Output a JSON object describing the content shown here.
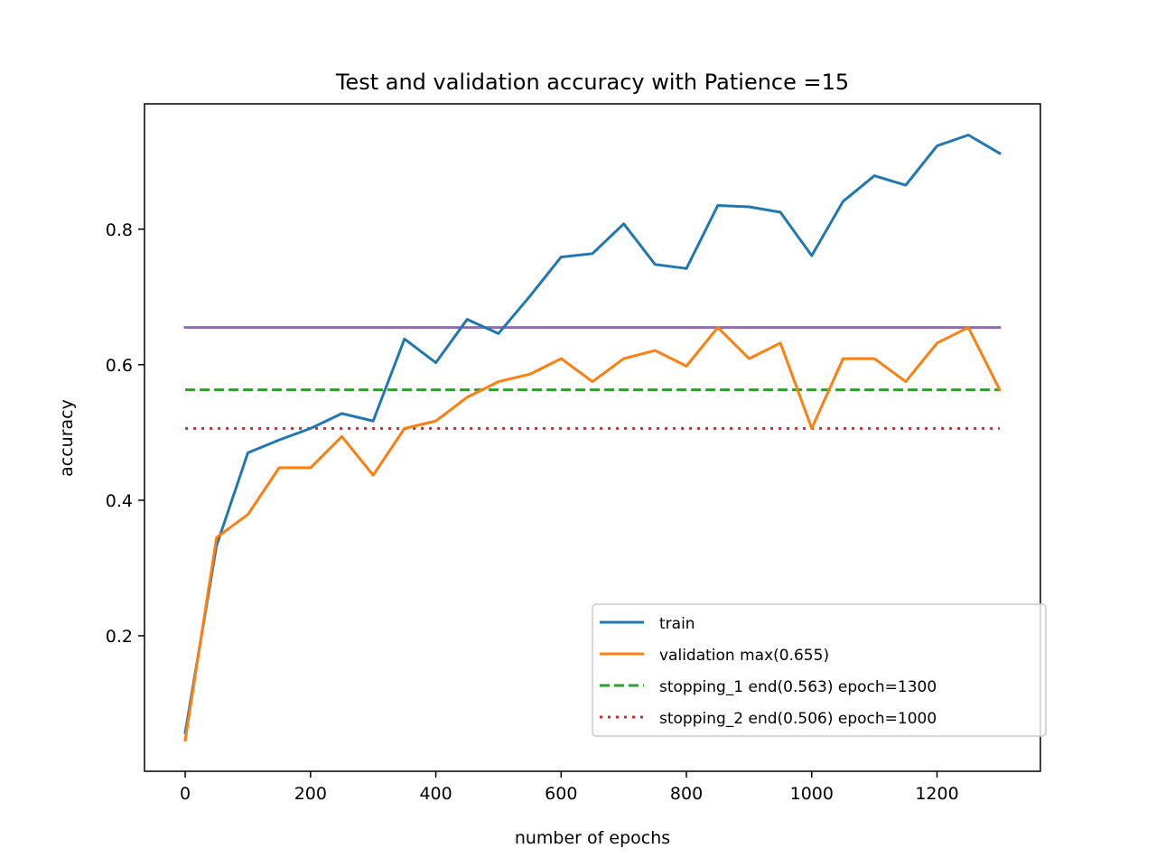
{
  "chart_data": {
    "type": "line",
    "title": "Test and validation accuracy with Patience =15",
    "xlabel": "number of epochs",
    "ylabel": "accuracy",
    "xlim": [
      -65,
      1365
    ],
    "ylim": [
      0.0,
      0.985
    ],
    "xticks": [
      0,
      200,
      400,
      600,
      800,
      1000,
      1200
    ],
    "yticks": [
      0.2,
      0.4,
      0.6,
      0.8
    ],
    "xtick_labels": [
      "0",
      "200",
      "400",
      "600",
      "800",
      "1000",
      "1200"
    ],
    "ytick_labels": [
      "0.2",
      "0.4",
      "0.6",
      "0.8"
    ],
    "grid": false,
    "legend_position": "lower-right",
    "x": [
      0,
      50,
      100,
      150,
      200,
      250,
      300,
      350,
      400,
      450,
      500,
      550,
      600,
      650,
      700,
      750,
      800,
      850,
      900,
      950,
      1000,
      1050,
      1100,
      1150,
      1200,
      1250,
      1300
    ],
    "series": [
      {
        "name": "train",
        "color": "#1f77b4",
        "style": "solid",
        "values": [
          0.057,
          0.333,
          0.47,
          0.489,
          0.506,
          0.528,
          0.517,
          0.638,
          0.603,
          0.667,
          0.646,
          0.701,
          0.759,
          0.764,
          0.808,
          0.748,
          0.742,
          0.835,
          0.833,
          0.825,
          0.761,
          0.841,
          0.879,
          0.865,
          0.923,
          0.939,
          0.912
        ]
      },
      {
        "name": "validation max(0.655)",
        "color": "#ff7f0e",
        "style": "solid",
        "values": [
          0.046,
          0.345,
          0.379,
          0.448,
          0.448,
          0.494,
          0.437,
          0.506,
          0.517,
          0.552,
          0.575,
          0.586,
          0.609,
          0.575,
          0.609,
          0.621,
          0.598,
          0.655,
          0.609,
          0.632,
          0.506,
          0.609,
          0.609,
          0.575,
          0.632,
          0.655,
          0.563
        ]
      },
      {
        "name": "stopping_1 end(0.563) epoch=1300",
        "color": "#2ca02c",
        "style": "dashed",
        "x": [
          0,
          1300
        ],
        "values": [
          0.563,
          0.563
        ]
      },
      {
        "name": "stopping_2 end(0.506) epoch=1000",
        "color": "#d62728",
        "style": "dotted",
        "x": [
          0,
          1300
        ],
        "values": [
          0.506,
          0.506
        ]
      },
      {
        "color": "#9467bd",
        "style": "solid",
        "x": [
          0,
          1300
        ],
        "values": [
          0.655,
          0.655
        ],
        "in_legend": false
      }
    ]
  }
}
